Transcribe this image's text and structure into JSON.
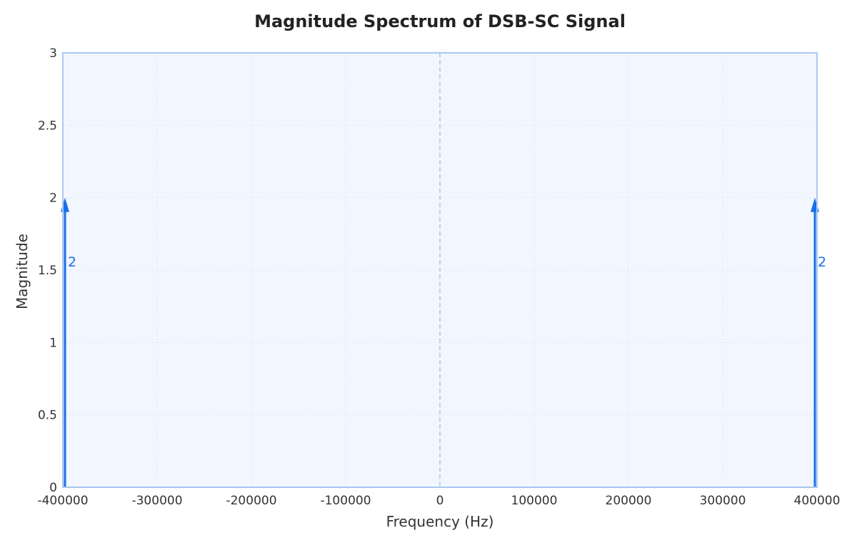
{
  "chart_data": {
    "type": "stem",
    "title": "Magnitude Spectrum of DSB-SC Signal",
    "xlabel": "Frequency (Hz)",
    "ylabel": "Magnitude",
    "xlim": [
      -400000,
      400000
    ],
    "ylim": [
      0,
      3
    ],
    "x_ticks": [
      -400000,
      -300000,
      -200000,
      -100000,
      0,
      100000,
      200000,
      300000,
      400000
    ],
    "y_ticks": [
      0,
      0.5,
      1,
      1.5,
      2,
      2.5,
      3
    ],
    "grid": true,
    "zero_reference_line": true,
    "x": [
      -400000,
      400000
    ],
    "values": [
      2,
      2
    ],
    "data_labels": [
      "2",
      "2"
    ]
  },
  "colors": {
    "plot_background": "#f2f7ff",
    "plot_border": "#a8c8f0",
    "grid": "#dbe6f5",
    "zero_line": "#b9d2f0",
    "stem": "#1a6fe8",
    "baseline": "#6fa6ee"
  }
}
